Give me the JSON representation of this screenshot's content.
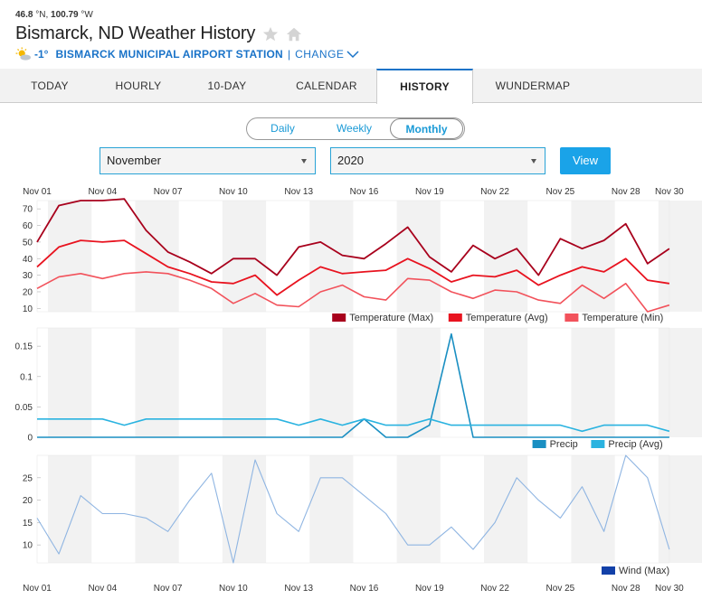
{
  "location": {
    "lat": "46.8",
    "lat_suffix": " °N, ",
    "lon": "100.79",
    "lon_suffix": " °W",
    "title": "Bismarck, ND Weather History",
    "current_temp": "-1°",
    "station": "BISMARCK MUNICIPAL AIRPORT STATION",
    "separator": "|",
    "change_label": "CHANGE"
  },
  "tabs": [
    {
      "label": "TODAY"
    },
    {
      "label": "HOURLY"
    },
    {
      "label": "10-DAY"
    },
    {
      "label": "CALENDAR"
    },
    {
      "label": "HISTORY",
      "active": true
    },
    {
      "label": "WUNDERMAP"
    }
  ],
  "period": {
    "options": [
      "Daily",
      "Weekly",
      "Monthly"
    ],
    "selected": "Monthly"
  },
  "filters": {
    "month": "November",
    "year": "2020",
    "view_label": "View"
  },
  "colors": {
    "temp_max": "#a8001c",
    "temp_avg": "#e8131f",
    "temp_min": "#f2525b",
    "precip": "#1a8fc2",
    "precip_avg": "#2ab3e0",
    "wind_max": "#8fb5e2",
    "wind_legend": "#1240a8",
    "accent": "#1a73c8"
  },
  "chart_data": [
    {
      "type": "line",
      "x": [
        "Nov 01",
        "Nov 02",
        "Nov 03",
        "Nov 04",
        "Nov 05",
        "Nov 06",
        "Nov 07",
        "Nov 08",
        "Nov 09",
        "Nov 10",
        "Nov 11",
        "Nov 12",
        "Nov 13",
        "Nov 14",
        "Nov 15",
        "Nov 16",
        "Nov 17",
        "Nov 18",
        "Nov 19",
        "Nov 20",
        "Nov 21",
        "Nov 22",
        "Nov 23",
        "Nov 24",
        "Nov 25",
        "Nov 26",
        "Nov 27",
        "Nov 28",
        "Nov 29",
        "Nov 30"
      ],
      "xticks": [
        "Nov 01",
        "Nov 04",
        "Nov 07",
        "Nov 10",
        "Nov 13",
        "Nov 16",
        "Nov 19",
        "Nov 22",
        "Nov 25",
        "Nov 28",
        "Nov 30"
      ],
      "yticks": [
        "10",
        "20",
        "30",
        "40",
        "50",
        "60",
        "70"
      ],
      "ylim": [
        8,
        75
      ],
      "series": [
        {
          "name": "Temperature (Max)",
          "values": [
            50,
            72,
            75,
            75,
            76,
            57,
            44,
            38,
            31,
            40,
            40,
            30,
            47,
            50,
            42,
            40,
            49,
            59,
            41,
            32,
            48,
            40,
            46,
            30,
            52,
            46,
            51,
            61,
            37,
            46
          ]
        },
        {
          "name": "Temperature (Avg)",
          "values": [
            35,
            47,
            51,
            50,
            51,
            43,
            35,
            31,
            26,
            25,
            30,
            18,
            27,
            35,
            31,
            32,
            33,
            40,
            34,
            26,
            30,
            29,
            33,
            24,
            30,
            35,
            32,
            40,
            27,
            25
          ]
        },
        {
          "name": "Temperature (Min)",
          "values": [
            22,
            29,
            31,
            28,
            31,
            32,
            31,
            27,
            22,
            13,
            19,
            12,
            11,
            20,
            24,
            17,
            15,
            28,
            27,
            20,
            16,
            21,
            20,
            15,
            13,
            24,
            16,
            25,
            8,
            12
          ]
        }
      ]
    },
    {
      "type": "line",
      "x": [
        "Nov 01",
        "Nov 02",
        "Nov 03",
        "Nov 04",
        "Nov 05",
        "Nov 06",
        "Nov 07",
        "Nov 08",
        "Nov 09",
        "Nov 10",
        "Nov 11",
        "Nov 12",
        "Nov 13",
        "Nov 14",
        "Nov 15",
        "Nov 16",
        "Nov 17",
        "Nov 18",
        "Nov 19",
        "Nov 20",
        "Nov 21",
        "Nov 22",
        "Nov 23",
        "Nov 24",
        "Nov 25",
        "Nov 26",
        "Nov 27",
        "Nov 28",
        "Nov 29",
        "Nov 30"
      ],
      "yticks": [
        "0",
        "0.05",
        "0.1",
        "0.15"
      ],
      "ylim": [
        0,
        0.18
      ],
      "series": [
        {
          "name": "Precip",
          "values": [
            0,
            0,
            0,
            0,
            0,
            0,
            0,
            0,
            0,
            0,
            0,
            0,
            0,
            0,
            0,
            0.03,
            0,
            0,
            0.02,
            0.17,
            0,
            0,
            0,
            0,
            0,
            0,
            0,
            0,
            0,
            0
          ]
        },
        {
          "name": "Precip (Avg)",
          "values": [
            0.03,
            0.03,
            0.03,
            0.03,
            0.02,
            0.03,
            0.03,
            0.03,
            0.03,
            0.03,
            0.03,
            0.03,
            0.02,
            0.03,
            0.02,
            0.03,
            0.02,
            0.02,
            0.03,
            0.02,
            0.02,
            0.02,
            0.02,
            0.02,
            0.02,
            0.01,
            0.02,
            0.02,
            0.02,
            0.01
          ]
        }
      ]
    },
    {
      "type": "line",
      "x": [
        "Nov 01",
        "Nov 02",
        "Nov 03",
        "Nov 04",
        "Nov 05",
        "Nov 06",
        "Nov 07",
        "Nov 08",
        "Nov 09",
        "Nov 10",
        "Nov 11",
        "Nov 12",
        "Nov 13",
        "Nov 14",
        "Nov 15",
        "Nov 16",
        "Nov 17",
        "Nov 18",
        "Nov 19",
        "Nov 20",
        "Nov 21",
        "Nov 22",
        "Nov 23",
        "Nov 24",
        "Nov 25",
        "Nov 26",
        "Nov 27",
        "Nov 28",
        "Nov 29",
        "Nov 30"
      ],
      "yticks": [
        "10",
        "15",
        "20",
        "25"
      ],
      "ylim": [
        6,
        30
      ],
      "series": [
        {
          "name": "Wind (Max)",
          "values": [
            16,
            8,
            21,
            17,
            17,
            16,
            13,
            20,
            26,
            6,
            29,
            17,
            13,
            25,
            25,
            21,
            17,
            10,
            10,
            14,
            9,
            15,
            25,
            20,
            16,
            23,
            13,
            30,
            25,
            9
          ]
        }
      ]
    }
  ]
}
